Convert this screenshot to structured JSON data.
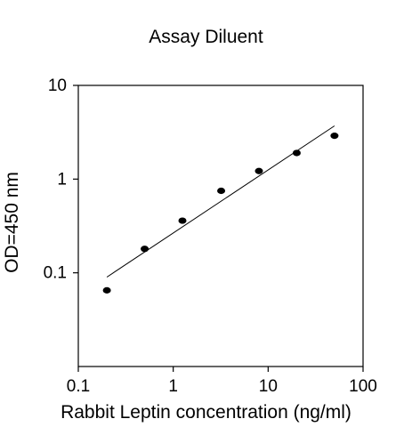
{
  "chart_data": {
    "type": "scatter",
    "title": "Assay Diluent",
    "xlabel": "Rabbit Leptin concentration (ng/ml)",
    "ylabel": "OD=450 nm",
    "x_scale": "log",
    "y_scale": "log",
    "xlim": [
      0.1,
      100
    ],
    "ylim": [
      0.01,
      10
    ],
    "x_ticks": [
      {
        "value": 0.1,
        "label": "0.1"
      },
      {
        "value": 1,
        "label": "1"
      },
      {
        "value": 10,
        "label": "10"
      },
      {
        "value": 100,
        "label": "100"
      }
    ],
    "y_ticks": [
      {
        "value": 0.1,
        "label": "0.1"
      },
      {
        "value": 1,
        "label": "1"
      },
      {
        "value": 10,
        "label": "10"
      }
    ],
    "grid": false,
    "legend": "none",
    "series": [
      {
        "points": [
          {
            "x": 0.2,
            "y": 0.065
          },
          {
            "x": 0.5,
            "y": 0.18
          },
          {
            "x": 1.25,
            "y": 0.36
          },
          {
            "x": 3.2,
            "y": 0.75
          },
          {
            "x": 8,
            "y": 1.22
          },
          {
            "x": 20,
            "y": 1.9
          },
          {
            "x": 50,
            "y": 2.9
          }
        ]
      }
    ],
    "fit_line": {
      "x": [
        0.2,
        50
      ],
      "y": [
        0.09,
        3.7
      ]
    },
    "colors": {
      "points": "#000000",
      "line": "#000000",
      "axes": "#000000"
    }
  }
}
